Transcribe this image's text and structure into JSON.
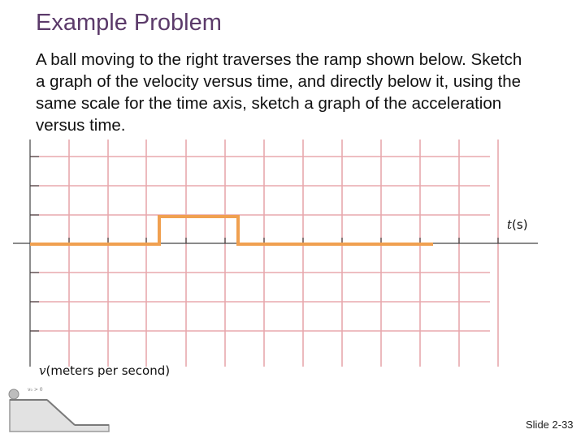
{
  "slide": {
    "title": "Example Problem",
    "problem_lines": [
      "A ball moving to the right traverses the ramp shown below. Sketch",
      "a graph of the velocity versus time, and directly below it, using the",
      "same scale for the time axis, sketch a graph of the acceleration",
      "versus time."
    ],
    "slide_number": "Slide 2-33"
  },
  "graph": {
    "time_axis_symbol": "t",
    "time_axis_unit": "(s)",
    "velocity_axis_symbol": "v",
    "velocity_axis_unit": "(meters per second)"
  },
  "ramp_thumbnail": {
    "label": "v₀ > 0"
  },
  "colors": {
    "title": "#5b3a6a",
    "grid": "#e8a8ad",
    "curve": "#f0a050",
    "axis": "#444444"
  },
  "chart_data": {
    "type": "line",
    "series": [
      {
        "x": [
          "start",
          "pulse_rise",
          "pulse_rise",
          "pulse_fall",
          "pulse_fall",
          "end"
        ],
        "y": [
          "low",
          "low",
          "high",
          "high",
          "low",
          "low"
        ]
      }
    ]
  }
}
